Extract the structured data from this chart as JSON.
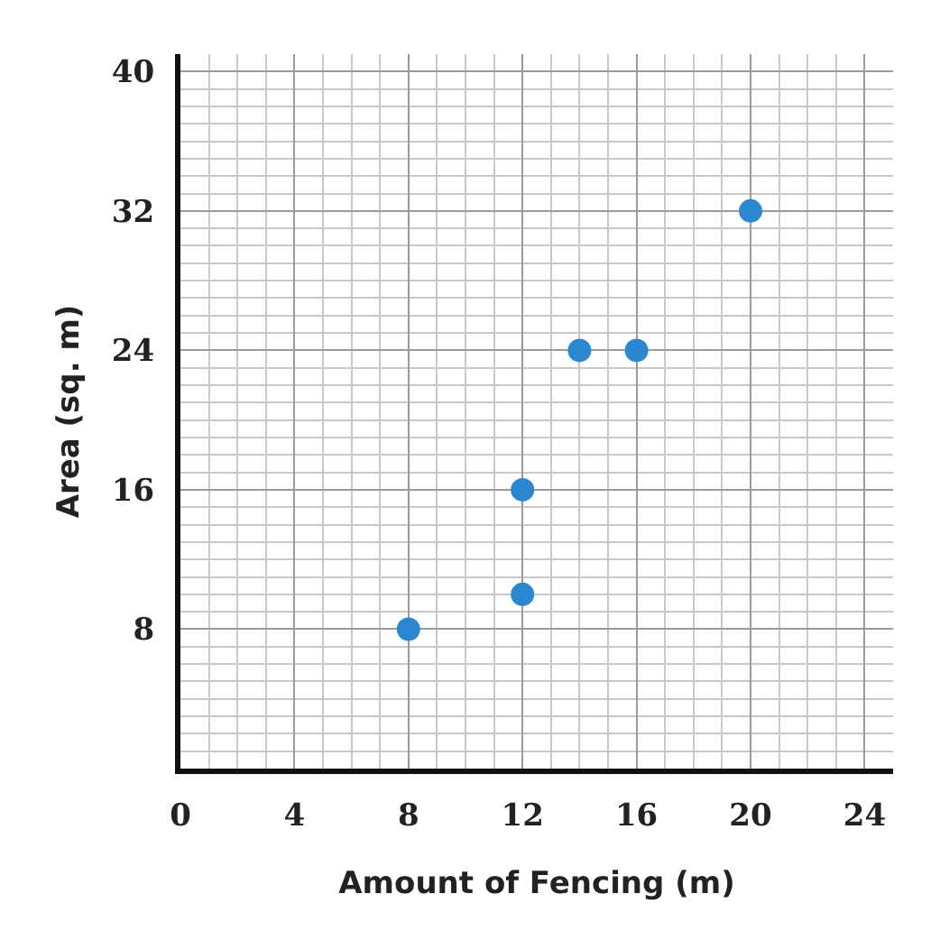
{
  "chart_data": {
    "type": "scatter",
    "xlabel": "Amount of Fencing (m)",
    "ylabel": "Area (sq. m)",
    "x": [
      8,
      12,
      12,
      14,
      16,
      20
    ],
    "series": [
      {
        "color": "#2a87d0",
        "values": [
          8,
          10,
          16,
          24,
          24,
          32
        ]
      }
    ],
    "xlim": [
      0,
      25
    ],
    "ylim": [
      0,
      41
    ],
    "xticks": [
      0,
      4,
      8,
      12,
      16,
      20,
      24
    ],
    "yticks": [
      8,
      16,
      24,
      32,
      40
    ],
    "grid": true,
    "marker": "circle"
  }
}
